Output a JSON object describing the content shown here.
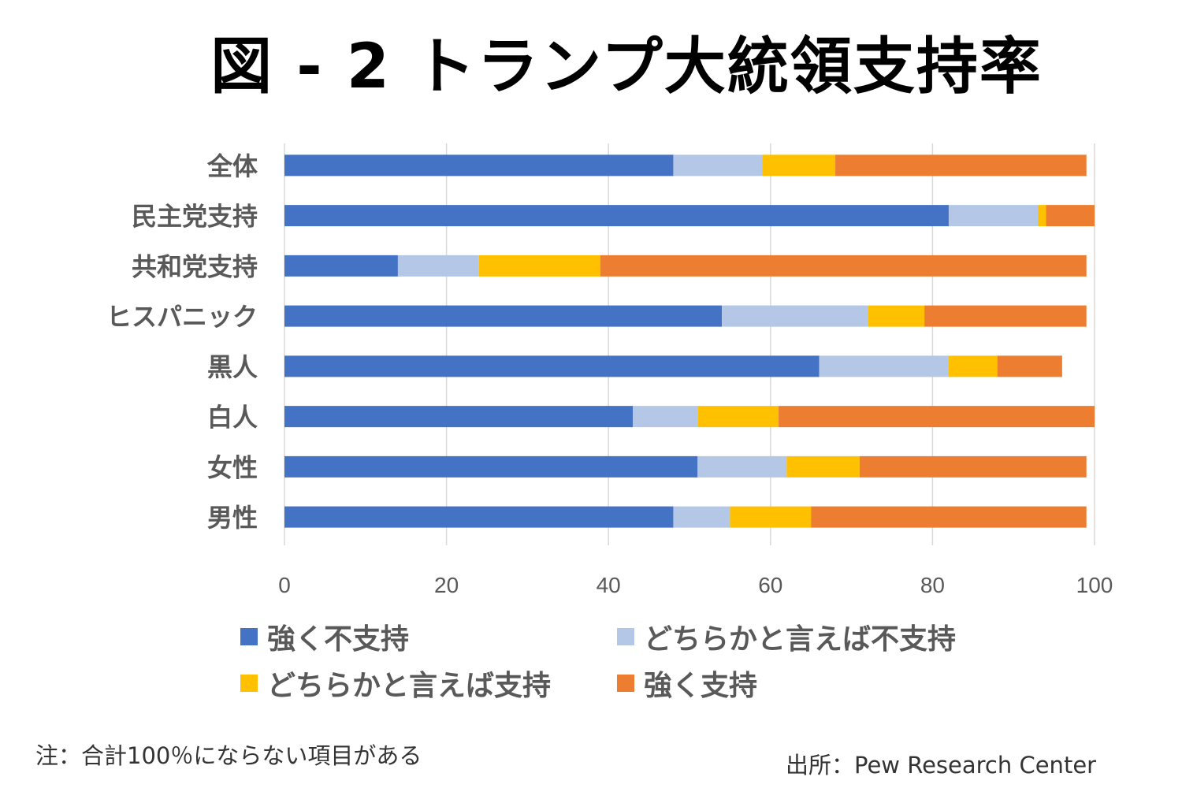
{
  "chart_data": {
    "type": "bar",
    "orientation": "horizontal",
    "stacked": true,
    "title": "図 - 2 トランプ大統領支持率",
    "categories": [
      "全体",
      "民主党支持",
      "共和党支持",
      "ヒスパニック",
      "黒人",
      "白人",
      "女性",
      "男性"
    ],
    "series": [
      {
        "name": "強く不支持",
        "color": "#4472C4",
        "values": [
          48,
          82,
          14,
          54,
          66,
          43,
          51,
          48
        ]
      },
      {
        "name": "どちらかと言えば不支持",
        "color": "#B4C7E7",
        "values": [
          11,
          11,
          10,
          18,
          16,
          8,
          11,
          7
        ]
      },
      {
        "name": "どちらかと言えば支持",
        "color": "#FFC000",
        "values": [
          9,
          1,
          15,
          7,
          6,
          10,
          9,
          10
        ]
      },
      {
        "name": "強く支持",
        "color": "#ED7D31",
        "values": [
          31,
          6,
          60,
          20,
          8,
          39,
          28,
          34
        ]
      }
    ],
    "xlim": [
      0,
      100
    ],
    "xticks": [
      "0",
      "20",
      "40",
      "60",
      "80",
      "100"
    ],
    "grid": true,
    "legend_position": "bottom"
  },
  "note": "注：合計100％にならない項目がある",
  "source": "出所：Pew Research Center"
}
